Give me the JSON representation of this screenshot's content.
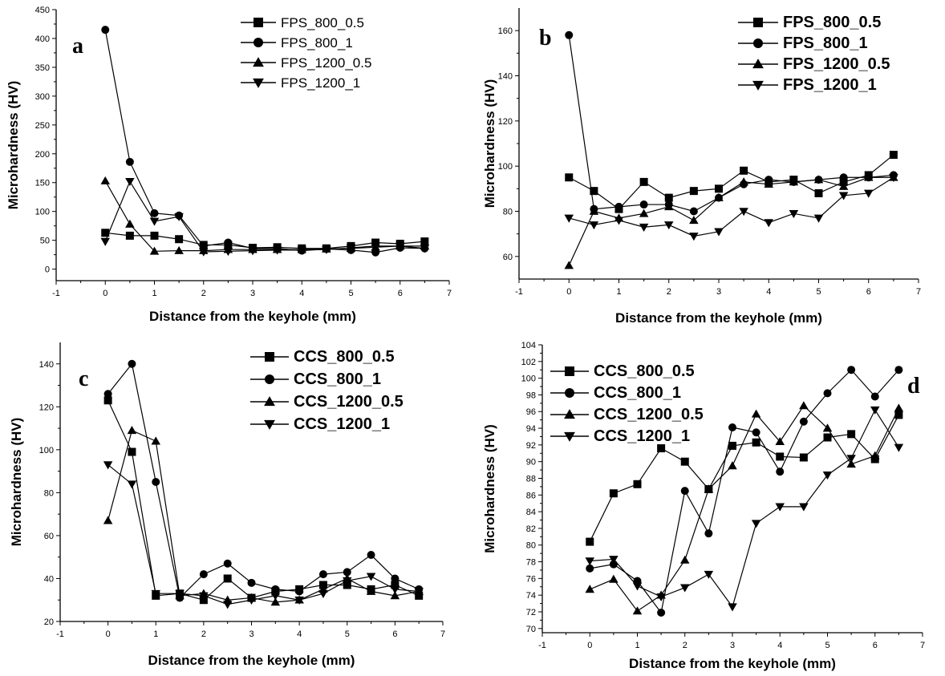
{
  "chart_data": [
    {
      "type": "line",
      "panel_label": "a",
      "xlabel": "Distance from the keyhole (mm)",
      "ylabel": "Microhardness (HV)",
      "xlim": [
        -1,
        7
      ],
      "ylim": [
        -20,
        450
      ],
      "xticks": [
        -1,
        0,
        1,
        2,
        3,
        4,
        5,
        6,
        7
      ],
      "yticks": [
        0,
        50,
        100,
        150,
        200,
        250,
        300,
        350,
        400,
        450
      ],
      "legend_position": "top-right",
      "x": [
        0,
        0.5,
        1,
        1.5,
        2,
        2.5,
        3,
        3.5,
        4,
        4.5,
        5,
        5.5,
        6,
        6.5
      ],
      "series": [
        {
          "name": "FPS_800_0.5",
          "marker": "square",
          "values": [
            63,
            58,
            58,
            52,
            42,
            42,
            37,
            38,
            36,
            36,
            40,
            46,
            44,
            48
          ]
        },
        {
          "name": "FPS_800_1",
          "marker": "circle",
          "values": [
            415,
            186,
            97,
            93,
            40,
            46,
            36,
            36,
            32,
            35,
            33,
            29,
            37,
            36
          ]
        },
        {
          "name": "FPS_1200_0.5",
          "marker": "triangle-up",
          "values": [
            153,
            78,
            31,
            32,
            32,
            34,
            34,
            34,
            34,
            35,
            36,
            38,
            40,
            40
          ]
        },
        {
          "name": "FPS_1200_1",
          "marker": "triangle-down",
          "values": [
            48,
            152,
            83,
            91,
            30,
            31,
            32,
            33,
            33,
            34,
            37,
            40,
            40,
            36
          ]
        }
      ]
    },
    {
      "type": "line",
      "panel_label": "b",
      "xlabel": "Distance from the keyhole (mm)",
      "ylabel": "Microhardness (HV)",
      "xlim": [
        -1,
        7
      ],
      "ylim": [
        50,
        170
      ],
      "xticks": [
        -1,
        0,
        1,
        2,
        3,
        4,
        5,
        6,
        7
      ],
      "yticks": [
        60,
        80,
        100,
        120,
        140,
        160
      ],
      "legend_position": "top-right",
      "x": [
        0,
        0.5,
        1,
        1.5,
        2,
        2.5,
        3,
        3.5,
        4,
        4.5,
        5,
        5.5,
        6,
        6.5
      ],
      "series": [
        {
          "name": "FPS_800_0.5",
          "marker": "square",
          "values": [
            95,
            89,
            81,
            93,
            86,
            89,
            90,
            98,
            93,
            94,
            88,
            93,
            96,
            105
          ]
        },
        {
          "name": "FPS_800_1",
          "marker": "circle",
          "values": [
            158,
            81,
            82,
            83,
            83,
            80,
            86,
            92,
            94,
            93,
            94,
            95,
            95,
            96
          ]
        },
        {
          "name": "FPS_1200_0.5",
          "marker": "triangle-up",
          "values": [
            56,
            80,
            77,
            79,
            82,
            76,
            86,
            93,
            92,
            93,
            94,
            91,
            95,
            95
          ]
        },
        {
          "name": "FPS_1200_1",
          "marker": "triangle-down",
          "values": [
            77,
            74,
            76,
            73,
            74,
            69,
            71,
            80,
            75,
            79,
            77,
            87,
            88,
            95
          ]
        }
      ]
    },
    {
      "type": "line",
      "panel_label": "c",
      "xlabel": "Distance from the keyhole (mm)",
      "ylabel": "Microhardness (HV)",
      "xlim": [
        -1,
        7
      ],
      "ylim": [
        20,
        150
      ],
      "xticks": [
        -1,
        0,
        1,
        2,
        3,
        4,
        5,
        6,
        7
      ],
      "yticks": [
        20,
        40,
        60,
        80,
        100,
        120,
        140
      ],
      "legend_position": "top-right",
      "x": [
        0,
        0.5,
        1,
        1.5,
        2,
        2.5,
        3,
        3.5,
        4,
        4.5,
        5,
        5.5,
        6,
        6.5
      ],
      "series": [
        {
          "name": "CCS_800_0.5",
          "marker": "square",
          "values": [
            123,
            99,
            32,
            33,
            30,
            40,
            31,
            34,
            35,
            37,
            37,
            35,
            37,
            32
          ]
        },
        {
          "name": "CCS_800_1",
          "marker": "circle",
          "values": [
            126,
            140,
            85,
            31,
            42,
            47,
            38,
            35,
            34,
            42,
            43,
            51,
            40,
            35
          ]
        },
        {
          "name": "CCS_1200_0.5",
          "marker": "triangle-up",
          "values": [
            67,
            109,
            104,
            32,
            33,
            30,
            31,
            29,
            30,
            35,
            40,
            34,
            32,
            34
          ]
        },
        {
          "name": "CCS_1200_1",
          "marker": "triangle-down",
          "values": [
            93,
            84,
            33,
            33,
            32,
            28,
            30,
            32,
            30,
            33,
            39,
            41,
            35,
            34
          ]
        }
      ]
    },
    {
      "type": "line",
      "panel_label": "d",
      "xlabel": "Distance from the keyhole (mm)",
      "ylabel": "Microhardness (HV)",
      "xlim": [
        -1,
        7
      ],
      "ylim": [
        69.5,
        104
      ],
      "xticks": [
        -1,
        0,
        1,
        2,
        3,
        4,
        5,
        6,
        7
      ],
      "yticks": [
        70,
        72,
        74,
        76,
        78,
        80,
        82,
        84,
        86,
        88,
        90,
        92,
        94,
        96,
        98,
        100,
        102,
        104
      ],
      "legend_position": "top-left",
      "x": [
        0,
        0.5,
        1,
        1.5,
        2,
        2.5,
        3,
        3.5,
        4,
        4.5,
        5,
        5.5,
        6,
        6.5
      ],
      "series": [
        {
          "name": "CCS_800_0.5",
          "marker": "square",
          "values": [
            80.4,
            86.2,
            87.3,
            91.6,
            90.0,
            86.7,
            91.9,
            92.3,
            90.6,
            90.5,
            92.9,
            93.3,
            90.3,
            95.6
          ]
        },
        {
          "name": "CCS_800_1",
          "marker": "circle",
          "values": [
            77.2,
            77.7,
            75.7,
            71.9,
            86.5,
            81.4,
            94.1,
            93.5,
            88.8,
            94.8,
            98.2,
            101.0,
            97.8,
            101.0
          ]
        },
        {
          "name": "CCS_1200_0.5",
          "marker": "triangle-up",
          "values": [
            74.7,
            75.9,
            72.1,
            74.0,
            78.2,
            86.7,
            89.5,
            95.7,
            92.4,
            96.7,
            94.0,
            89.7,
            90.7,
            96.4
          ]
        },
        {
          "name": "CCS_1200_1",
          "marker": "triangle-down",
          "values": [
            78.1,
            78.3,
            75.1,
            73.8,
            74.9,
            76.5,
            72.6,
            82.6,
            84.6,
            84.6,
            88.4,
            90.4,
            96.2,
            91.7
          ]
        }
      ]
    }
  ]
}
